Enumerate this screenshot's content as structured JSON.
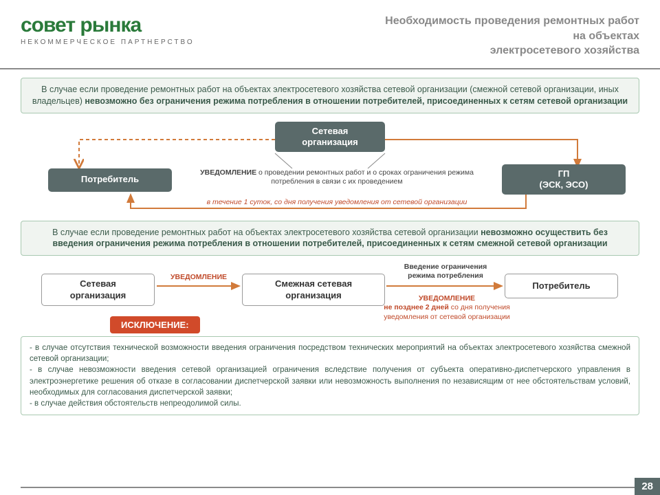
{
  "logo": {
    "main": "совет рынка",
    "sub": "НЕКОММЕРЧЕСКОЕ ПАРТНЕРСТВО"
  },
  "title": "Необходимость проведения ремонтных работ\nна объектах\nэлектросетевого хозяйства",
  "box1": {
    "t1": "В случае если проведение ремонтных работ на объектах электросетевого хозяйства сетевой организации (смежной сетевой организации, иных владельцев) ",
    "b1": "невозможно без ограничения режима потребления в отношении потребителей, присоединенных к сетям сетевой организации"
  },
  "diagram1": {
    "node_top": "Сетевая\nорганизация",
    "node_left": "Потребитель",
    "node_right": "ГП\n(ЭСК, ЭСО)",
    "text_mid_b": "УВЕДОМЛЕНИЕ",
    "text_mid": " о проведении ремонтных работ и о сроках ограничения режима потребления в связи с их проведением",
    "text_red": "в течение 1 суток, со дня получения уведомления от сетевой организации"
  },
  "box2": {
    "t1": "В случае если проведение ремонтных работ на объектах электросетевого хозяйства сетевой организации ",
    "b1": "невозможно осуществить без введения ограничения режима потребления в отношении потребителей, присоединенных к сетям смежной сетевой организации"
  },
  "diagram2": {
    "n1": "Сетевая\nорганизация",
    "n2": "Смежная сетевая\nорганизация",
    "n3": "Потребитель",
    "a1": "УВЕДОМЛЕНИЕ",
    "a2": "Введение ограничения\nрежима потребления",
    "red_b": "УВЕДОМЛЕНИЕ",
    "red": "не позднее 2 дней",
    "red2": " со дня получения\nуведомления от сетевой организации"
  },
  "exception_label": "ИСКЛЮЧЕНИЕ:",
  "exception": {
    "i1": "в случае отсутствия технической возможности введения ограничения посредством технических мероприятий на объектах электросетевого хозяйства смежной сетевой организации;",
    "i2": "в случае невозможности введения сетевой организацией ограничения вследствие получения от субъекта оперативно-диспетчерского управления в электроэнергетике решения об отказе в согласовании диспетчерской заявки или невозможность выполнения по независящим от нее обстоятельствам условий, необходимых для согласования диспетчерской заявки;",
    "i3": "в случае действия обстоятельств непреодолимой силы."
  },
  "page_num": "28",
  "colors": {
    "node_bg": "#5a6a6a",
    "arrow_orange": "#d17a3a",
    "arrow_red": "#d14a2a",
    "green": "#2a7a3a"
  }
}
